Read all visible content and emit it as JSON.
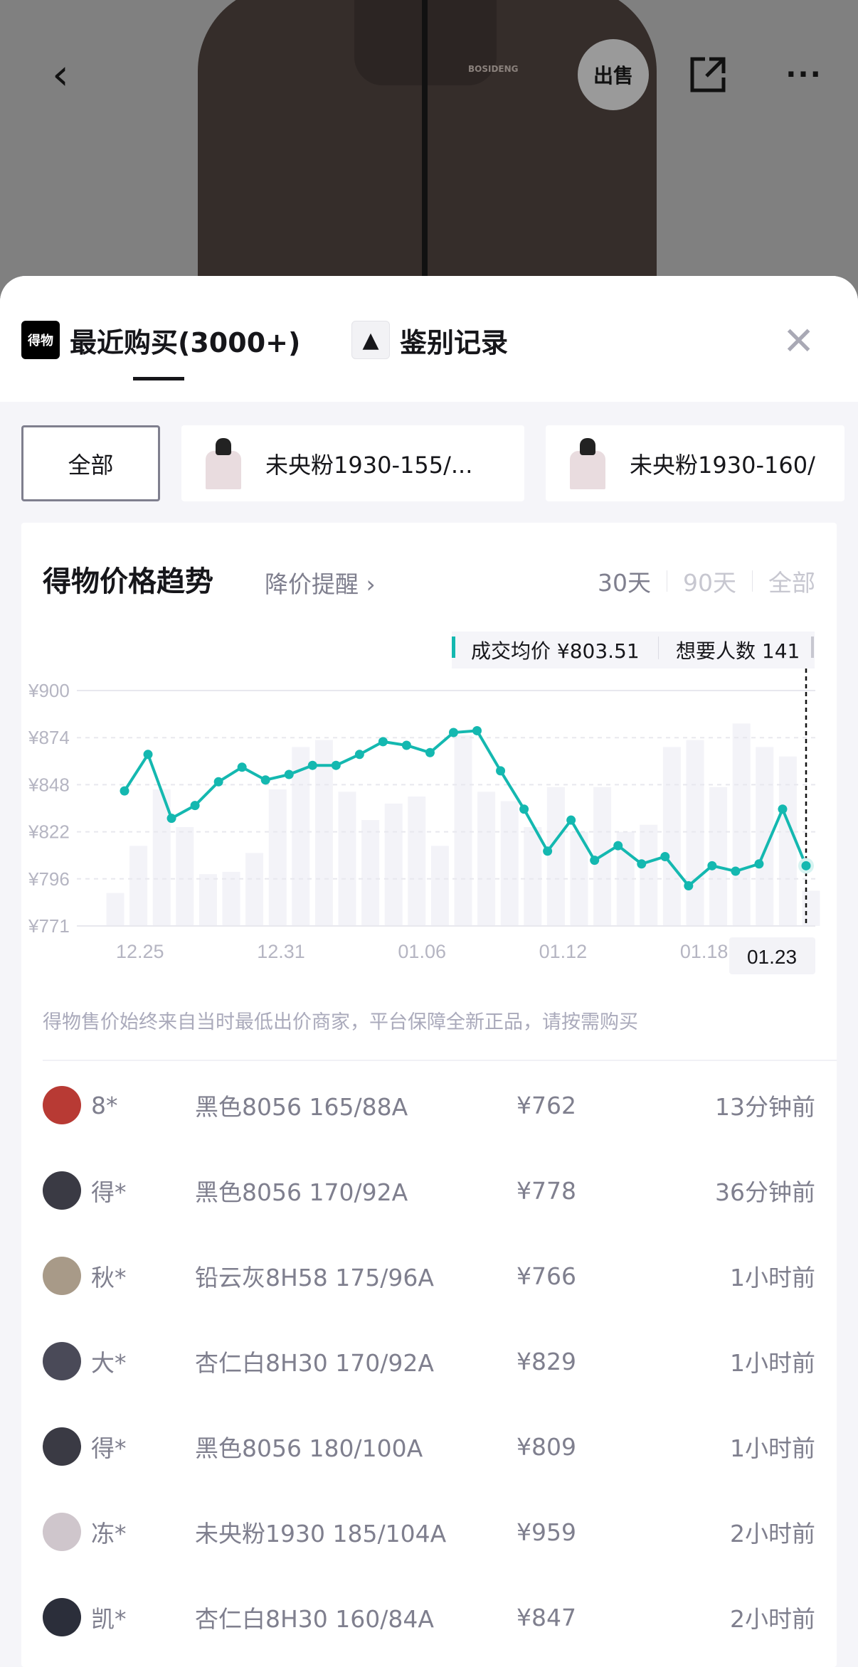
{
  "header": {
    "back_icon": "chevron-left-icon",
    "sell_label": "出售",
    "share_icon": "share-icon",
    "more_icon": "more-icon",
    "jacket_logo": "BOSIDENG"
  },
  "tabs": [
    {
      "label": "最近购买(3000+)",
      "icon": "得物",
      "active": true
    },
    {
      "label": "鉴别记录",
      "icon": "jacket-thumbnail",
      "active": false
    }
  ],
  "close_icon": "close-icon",
  "filters": [
    {
      "label": "全部",
      "selected": true
    },
    {
      "label": "未央粉1930-155/...",
      "selected": false
    },
    {
      "label": "未央粉1930-160/",
      "selected": false
    }
  ],
  "trend": {
    "title": "得物价格趋势",
    "alert_label": "降价提醒 ›",
    "ranges": [
      {
        "label": "30天",
        "active": true
      },
      {
        "label": "90天",
        "active": false
      },
      {
        "label": "全部",
        "active": false
      }
    ],
    "tooltip": {
      "avg_label": "成交均价 ¥803.51",
      "want_label": "想要人数 141"
    },
    "disclaimer": "得物售价始终来自当时最低出价商家，平台保障全新正品，请按需购买"
  },
  "chart_data": {
    "type": "line",
    "title": "得物价格趋势",
    "y_ticks": [
      "¥900",
      "¥874",
      "¥848",
      "¥822",
      "¥796",
      "¥771"
    ],
    "ylim": [
      771,
      900
    ],
    "x_tick_labels": [
      "12.25",
      "12.31",
      "01.06",
      "01.12",
      "01.18",
      "01.23"
    ],
    "selected_x": "01.23",
    "x": [
      "12.25",
      "12.26",
      "12.27",
      "12.28",
      "12.29",
      "12.30",
      "12.31",
      "01.01",
      "01.02",
      "01.03",
      "01.04",
      "01.05",
      "01.06",
      "01.07",
      "01.08",
      "01.09",
      "01.10",
      "01.11",
      "01.12",
      "01.13",
      "01.14",
      "01.15",
      "01.16",
      "01.17",
      "01.18",
      "01.19",
      "01.20",
      "01.21",
      "01.22",
      "01.23"
    ],
    "series": [
      {
        "values": [
          845,
          865,
          830,
          837,
          850,
          858,
          851,
          854,
          859,
          859,
          865,
          872,
          870,
          866,
          877,
          878,
          856,
          835,
          812,
          829,
          807,
          815,
          805,
          809,
          793,
          804,
          801,
          805,
          835,
          804
        ]
      }
    ],
    "bars_relative": [
      14,
      34,
      58,
      42,
      22,
      23,
      31,
      58,
      76,
      79,
      57,
      45,
      52,
      55,
      34,
      81,
      57,
      53,
      42,
      59,
      40,
      59,
      40,
      43,
      76,
      79,
      59,
      86,
      76,
      72,
      15
    ],
    "line_color": "#14b8b0",
    "bar_color": "#f3f3f8",
    "grid": true
  },
  "purchases": [
    {
      "name": "8*",
      "variant": "黑色8056 165/88A",
      "price": "¥762",
      "time": "13分钟前",
      "avatar": "#b83a34"
    },
    {
      "name": "得*",
      "variant": "黑色8056 170/92A",
      "price": "¥778",
      "time": "36分钟前",
      "avatar": "#3a3a44"
    },
    {
      "name": "秋*",
      "variant": "铅云灰8H58 175/96A",
      "price": "¥766",
      "time": "1小时前",
      "avatar": "#a89a88"
    },
    {
      "name": "大*",
      "variant": "杏仁白8H30 170/92A",
      "price": "¥829",
      "time": "1小时前",
      "avatar": "#4a4a58"
    },
    {
      "name": "得*",
      "variant": "黑色8056 180/100A",
      "price": "¥809",
      "time": "1小时前",
      "avatar": "#3a3a44"
    },
    {
      "name": "冻*",
      "variant": "未央粉1930 185/104A",
      "price": "¥959",
      "time": "2小时前",
      "avatar": "#cfc6cc"
    },
    {
      "name": "凯*",
      "variant": "杏仁白8H30 160/84A",
      "price": "¥847",
      "time": "2小时前",
      "avatar": "#2b2e3a"
    }
  ]
}
